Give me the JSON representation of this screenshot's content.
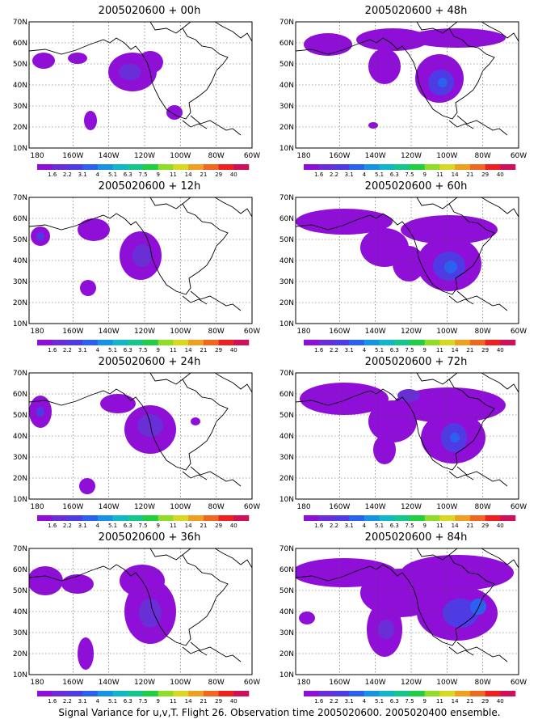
{
  "panels": [
    {
      "title": "2005020600 + 00h"
    },
    {
      "title": "2005020600 + 48h"
    },
    {
      "title": "2005020600 + 12h"
    },
    {
      "title": "2005020600 + 60h"
    },
    {
      "title": "2005020600 + 24h"
    },
    {
      "title": "2005020600 + 72h"
    },
    {
      "title": "2005020600 + 36h"
    },
    {
      "title": "2005020600 + 84h"
    }
  ],
  "map": {
    "lat_labels": [
      "70N",
      "60N",
      "50N",
      "40N",
      "30N",
      "20N",
      "10N"
    ],
    "lon_labels": [
      "180",
      "160W",
      "140W",
      "120W",
      "100W",
      "80W",
      "60W"
    ]
  },
  "colorbar": {
    "labels": [
      "1.6",
      "2.2",
      "3.1",
      "4",
      "5.1",
      "6.3",
      "7.5",
      "9",
      "11",
      "14",
      "21",
      "29",
      "40"
    ],
    "colors": [
      "#8f0fd8",
      "#6a2ed8",
      "#4e3be6",
      "#2b61f0",
      "#1793e6",
      "#10b7c8",
      "#14c88c",
      "#20d040",
      "#90dd28",
      "#d8d820",
      "#f0a020",
      "#f06820",
      "#f02020",
      "#d0105a"
    ]
  },
  "footer": "Signal Variance for u,v,T. Flight 26. Observation time 2005020600. 2005020400 ensemble."
}
